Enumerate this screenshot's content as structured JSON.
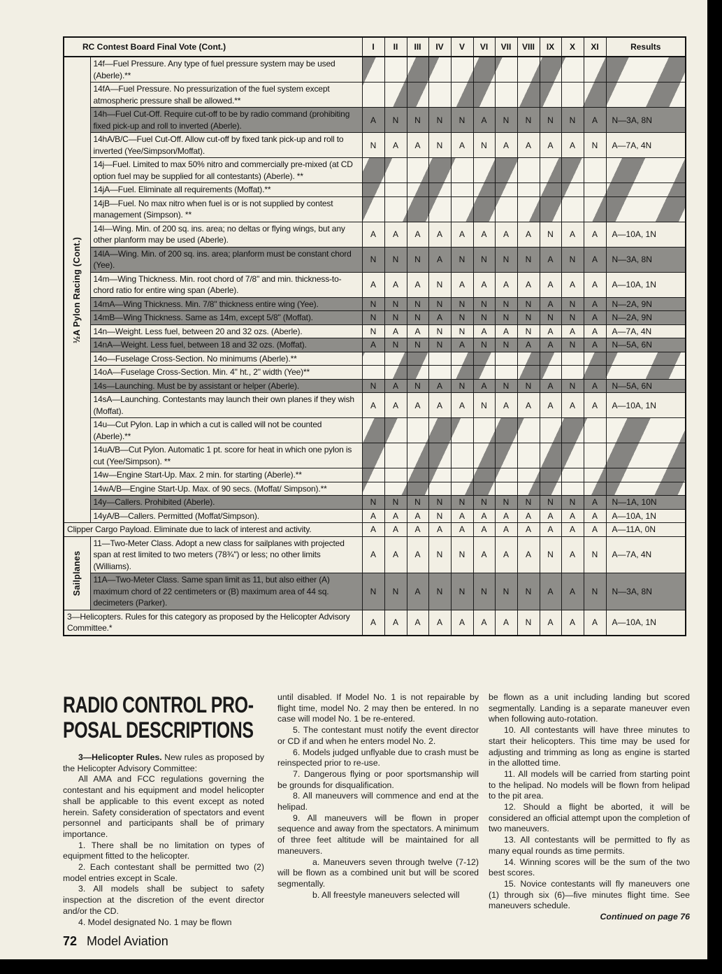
{
  "table": {
    "title": "RC Contest Board Final Vote (Cont.)",
    "columns": [
      "I",
      "II",
      "III",
      "IV",
      "V",
      "VI",
      "VII",
      "VIII",
      "IX",
      "X",
      "XI"
    ],
    "results_header": "Results",
    "groups": {
      "pylon": "½A Pylon Racing (Cont.)",
      "sailplanes": "Sailplanes"
    },
    "rows": [
      {
        "group": "pylon",
        "label": "14f—Fuel Pressure. Any type of fuel pressure system may be used (Aberle).**",
        "votes": null,
        "result": "",
        "shaded": false
      },
      {
        "group": "pylon",
        "label": "14fA—Fuel Pressure. No pressurization of the fuel system except atmospheric pressure shall be allowed.**",
        "votes": null,
        "result": "",
        "shaded": false
      },
      {
        "group": "pylon",
        "label": "14h—Fuel Cut-Off. Require cut-off to be by radio command (prohibiting fixed pick-up and roll to inverted (Aberle).",
        "votes": [
          "A",
          "N",
          "N",
          "N",
          "N",
          "A",
          "N",
          "N",
          "N",
          "N",
          "A"
        ],
        "result": "N—3A, 8N",
        "shaded": true
      },
      {
        "group": "pylon",
        "label": "14hA/B/C—Fuel Cut-Off. Allow cut-off by fixed tank pick-up and roll to inverted (Yee/Simpson/Moffat).",
        "votes": [
          "N",
          "A",
          "A",
          "N",
          "A",
          "N",
          "A",
          "A",
          "A",
          "A",
          "N"
        ],
        "result": "A—7A, 4N",
        "shaded": false
      },
      {
        "group": "pylon",
        "label": "14j—Fuel. Limited to max 50% nitro and commercially pre-mixed (at CD option fuel may be supplied for all contestants) (Aberle). **",
        "votes": null,
        "result": "",
        "shaded": false
      },
      {
        "group": "pylon",
        "label": "14jA—Fuel. Eliminate all requirements (Moffat).**",
        "votes": null,
        "result": "",
        "shaded": false
      },
      {
        "group": "pylon",
        "label": "14jB—Fuel. No max nitro when fuel is or is not supplied by contest management (Simpson). **",
        "votes": null,
        "result": "",
        "shaded": false
      },
      {
        "group": "pylon",
        "label": "14l—Wing. Min. of 200 sq. ins. area; no deltas or flying wings, but any other planform may be used (Aberle).",
        "votes": [
          "A",
          "A",
          "A",
          "A",
          "A",
          "A",
          "A",
          "A",
          "N",
          "A",
          "A"
        ],
        "result": "A—10A, 1N",
        "shaded": false
      },
      {
        "group": "pylon",
        "label": "14lA—Wing. Min. of 200 sq. ins. area; planform must be constant chord (Yee).",
        "votes": [
          "N",
          "N",
          "N",
          "A",
          "N",
          "N",
          "N",
          "N",
          "A",
          "N",
          "A"
        ],
        "result": "N—3A, 8N",
        "shaded": true
      },
      {
        "group": "pylon",
        "label": "14m—Wing Thickness. Min. root chord of 7/8\" and min. thickness-to-chord ratio for entire wing span (Aberle).",
        "votes": [
          "A",
          "A",
          "A",
          "N",
          "A",
          "A",
          "A",
          "A",
          "A",
          "A",
          "A"
        ],
        "result": "A—10A, 1N",
        "shaded": false
      },
      {
        "group": "pylon",
        "label": "14mA—Wing Thickness. Min. 7/8\" thickness entire wing (Yee).",
        "votes": [
          "N",
          "N",
          "N",
          "N",
          "N",
          "N",
          "N",
          "N",
          "A",
          "N",
          "A"
        ],
        "result": "N—2A, 9N",
        "shaded": true
      },
      {
        "group": "pylon",
        "label": "14mB—Wing Thickness. Same as 14m, except 5/8\" (Moffat).",
        "votes": [
          "N",
          "N",
          "N",
          "A",
          "N",
          "N",
          "N",
          "N",
          "N",
          "N",
          "A"
        ],
        "result": "N—2A, 9N",
        "shaded": true
      },
      {
        "group": "pylon",
        "label": "14n—Weight. Less fuel, between 20 and 32 ozs. (Aberle).",
        "votes": [
          "N",
          "A",
          "A",
          "N",
          "N",
          "A",
          "A",
          "N",
          "A",
          "A",
          "A"
        ],
        "result": "A—7A, 4N",
        "shaded": false
      },
      {
        "group": "pylon",
        "label": "14nA—Weight. Less fuel, between 18 and 32 ozs. (Moffat).",
        "votes": [
          "A",
          "N",
          "N",
          "N",
          "A",
          "N",
          "N",
          "A",
          "A",
          "N",
          "A"
        ],
        "result": "N—5A, 6N",
        "shaded": true
      },
      {
        "group": "pylon",
        "label": "14o—Fuselage Cross-Section. No minimums (Aberle).**",
        "votes": null,
        "result": "",
        "shaded": false
      },
      {
        "group": "pylon",
        "label": "14oA—Fuselage Cross-Section. Min. 4\" ht., 2\" width (Yee)**",
        "votes": null,
        "result": "",
        "shaded": false
      },
      {
        "group": "pylon",
        "label": "14s—Launching. Must be by assistant or helper (Aberle).",
        "votes": [
          "N",
          "A",
          "N",
          "A",
          "N",
          "A",
          "N",
          "N",
          "A",
          "N",
          "A"
        ],
        "result": "N—5A, 6N",
        "shaded": true
      },
      {
        "group": "pylon",
        "label": "14sA—Launching. Contestants may launch their own planes if they wish (Moffat).",
        "votes": [
          "A",
          "A",
          "A",
          "A",
          "A",
          "N",
          "A",
          "A",
          "A",
          "A",
          "A"
        ],
        "result": "A—10A, 1N",
        "shaded": false
      },
      {
        "group": "pylon",
        "label": "14u—Cut Pylon. Lap in which a cut is called will not be counted (Aberle).**",
        "votes": null,
        "result": "",
        "shaded": false
      },
      {
        "group": "pylon",
        "label": "14uA/B—Cut Pylon. Automatic 1 pt. score for heat in which one pylon is cut (Yee/Simpson). **",
        "votes": null,
        "result": "",
        "shaded": false
      },
      {
        "group": "pylon",
        "label": "14w—Engine Start-Up. Max. 2 min. for starting (Aberle).**",
        "votes": null,
        "result": "",
        "shaded": false
      },
      {
        "group": "pylon",
        "label": "14wA/B—Engine Start-Up. Max. of 90 secs. (Moffat/ Simpson).**",
        "votes": null,
        "result": "",
        "shaded": false
      },
      {
        "group": "pylon",
        "label": "14y—Callers. Prohibited (Aberle).",
        "votes": [
          "N",
          "N",
          "N",
          "N",
          "N",
          "N",
          "N",
          "N",
          "N",
          "N",
          "A"
        ],
        "result": "N—1A, 10N",
        "shaded": true
      },
      {
        "group": "pylon",
        "label": "14yA/B—Callers. Permitted (Moffat/Simpson).",
        "votes": [
          "A",
          "A",
          "A",
          "N",
          "A",
          "A",
          "A",
          "A",
          "A",
          "A",
          "A"
        ],
        "result": "A—10A, 1N",
        "shaded": false
      },
      {
        "group": null,
        "label": "Clipper Cargo Payload. Eliminate due to lack of interest and activity.",
        "votes": [
          "A",
          "A",
          "A",
          "A",
          "A",
          "A",
          "A",
          "A",
          "A",
          "A",
          "A"
        ],
        "result": "A—11A, 0N",
        "shaded": false
      },
      {
        "group": "sailplanes",
        "label": "11—Two-Meter Class. Adopt a new class for sailplanes with projected span at rest limited to two meters (78¾\") or less; no other limits (Williams).",
        "votes": [
          "A",
          "A",
          "A",
          "N",
          "N",
          "A",
          "A",
          "A",
          "N",
          "A",
          "N"
        ],
        "result": "A—7A, 4N",
        "shaded": false
      },
      {
        "group": "sailplanes",
        "label": "11A—Two-Meter Class. Same span limit as 11, but also either (A) maximum chord of 22 centimeters or (B) maximum area of 44 sq. decimeters (Parker).",
        "votes": [
          "N",
          "N",
          "A",
          "N",
          "N",
          "N",
          "N",
          "N",
          "A",
          "A",
          "N"
        ],
        "result": "N—3A, 8N",
        "shaded": true
      },
      {
        "group": null,
        "label": "3—Helicopters. Rules for this category as proposed by the Helicopter Advisory Committee.*",
        "votes": [
          "A",
          "A",
          "A",
          "A",
          "A",
          "A",
          "A",
          "N",
          "A",
          "A",
          "A"
        ],
        "result": "A—10A, 1N",
        "shaded": false
      }
    ]
  },
  "article": {
    "headline": [
      "RADIO CONTROL PRO-",
      "POSAL DESCRIPTIONS"
    ],
    "columns": [
      [
        {
          "bold": "3—Helicopter Rules.",
          "text": " New rules as proposed by the Helicopter Advisory Committee:"
        },
        {
          "text": "All AMA and FCC regulations governing the contestant and his equipment and model helicopter shall be applicable to this event except as noted herein. Safety consideration of spectators and event personnel and participants shall be of primary importance."
        },
        {
          "text": "1. There shall be no limitation on types of equipment fitted to the helicopter."
        },
        {
          "text": "2. Each contestant shall be permitted two (2) model entries except in Scale."
        },
        {
          "text": "3. All models shall be subject to safety inspection at the discretion of the event director and/or the CD."
        },
        {
          "text": "4. Model designated No. 1 may be flown"
        }
      ],
      [
        {
          "text": "until disabled. If Model No. 1 is not repairable by flight time, model No. 2 may then be entered. In no case will model No. 1 be re-entered.",
          "style": "noind"
        },
        {
          "text": "5. The contestant must notify the event director or CD if and when he enters model No. 2."
        },
        {
          "text": "6. Models judged unflyable due to crash must be reinspected prior to re-use."
        },
        {
          "text": "7. Dangerous flying or poor sportsmanship will be grounds for disqualification."
        },
        {
          "text": "8. All maneuvers will commence and end at the helipad."
        },
        {
          "text": "9. All maneuvers will be flown in proper sequence and away from the spectators. A minimum of three feet altitude will be maintained for all maneuvers."
        },
        {
          "text": "a. Maneuvers seven through twelve (7-12) will be flown as a combined unit but will be scored segmentally.",
          "style": "sub"
        },
        {
          "text": "b. All freestyle maneuvers selected will",
          "style": "sub"
        }
      ],
      [
        {
          "text": "be flown as a unit including landing but scored segmentally. Landing is a separate maneuver even when following auto-rotation.",
          "style": "noind"
        },
        {
          "text": "10. All contestants will have three minutes to start their helicopters. This time may be used for adjusting and trimming as long as engine is started in the allotted time."
        },
        {
          "text": "11. All models will be carried from starting point to the helipad. No models will be flown from helipad to the pit area."
        },
        {
          "text": "12. Should a flight be aborted, it will be considered an official attempt upon the completion of two maneuvers."
        },
        {
          "text": "13. All contestants will be permitted to fly as many equal rounds as time permits."
        },
        {
          "text": "14. Winning scores will be the sum of the two best scores."
        },
        {
          "text": "15. Novice contestants will fly maneuvers one (1) through six (6)—five minutes flight time. See maneuvers schedule."
        },
        {
          "text": "Continued on page 76",
          "style": "cont"
        }
      ]
    ]
  },
  "footer": {
    "page_number": "72",
    "magazine": "Model Aviation"
  }
}
